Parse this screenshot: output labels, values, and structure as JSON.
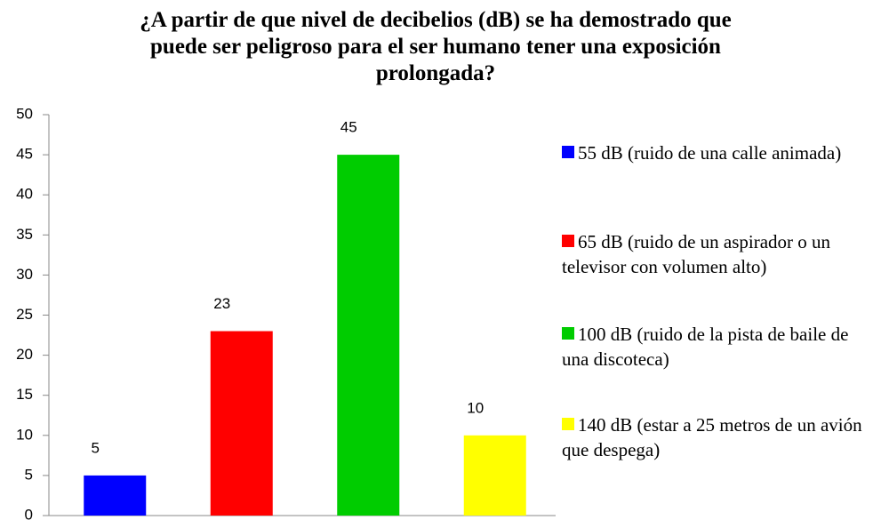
{
  "chart_data": {
    "type": "bar",
    "title": "¿A partir de que nivel de decibelios (dB)  se ha demostrado que puede ser peligroso para el ser humano tener una exposición prolongada?",
    "series": [
      {
        "name": "55 dB (ruido de una calle animada)",
        "color": "#0000ff",
        "values": [
          5
        ]
      },
      {
        "name": "65 dB (ruido de un aspirador o un televisor con volumen alto)",
        "color": "#ff0000",
        "values": [
          23
        ]
      },
      {
        "name": "100 dB (ruido de la pista de baile de una discoteca)",
        "color": "#00cc00",
        "values": [
          45
        ]
      },
      {
        "name": "140 dB (estar a 25 metros de un avión que despega)",
        "color": "#ffff00",
        "values": [
          10
        ]
      }
    ],
    "ylim": [
      0,
      50
    ],
    "yticks": [
      0,
      5,
      10,
      15,
      20,
      25,
      30,
      35,
      40,
      45,
      50
    ],
    "grid": false,
    "legend": "right"
  }
}
